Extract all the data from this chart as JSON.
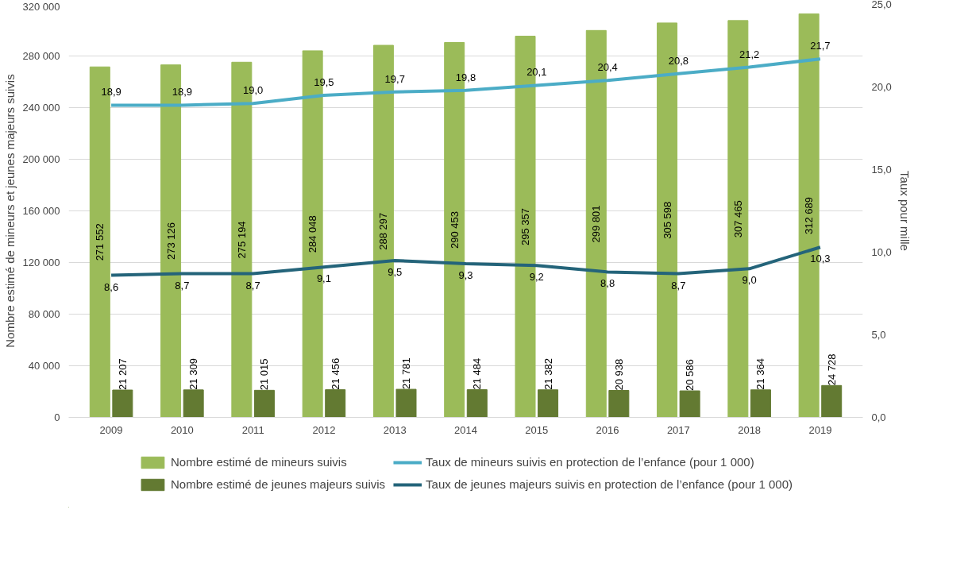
{
  "chart_data": {
    "type": "bar",
    "ylabel": "Nombre estimé de mineurs et jeunes majeurs suivis",
    "y2label": "Taux pour mille",
    "categories": [
      "2009",
      "2010",
      "2011",
      "2012",
      "2013",
      "2014",
      "2015",
      "2016",
      "2017",
      "2018",
      "2019"
    ],
    "series": [
      {
        "name": "Nombre estimé de mineurs suivis",
        "color": "#9bbb59",
        "values": [
          271552,
          273126,
          275194,
          284048,
          288297,
          290453,
          295357,
          299801,
          305598,
          307465,
          312689
        ],
        "value_labels": [
          "271 552",
          "273 126",
          "275 194",
          "284 048",
          "288 297",
          "290 453",
          "295 357",
          "299 801",
          "305 598",
          "307 465",
          "312 689"
        ]
      },
      {
        "name": "Nombre estimé de jeunes majeurs suivis",
        "color": "#637a32",
        "values": [
          21207,
          21309,
          21015,
          21456,
          21781,
          21484,
          21382,
          20938,
          20586,
          21364,
          24728
        ],
        "value_labels": [
          "21 207",
          "21 309",
          "21 015",
          "21 456",
          "21 781",
          "21 484",
          "21 382",
          "20 938",
          "20 586",
          "21 364",
          "24 728"
        ]
      },
      {
        "name": "Taux de mineurs suivis en protection de l’enfance (pour 1 000)",
        "type": "line",
        "axis": "y2",
        "color": "#4bacc6",
        "values": [
          18.9,
          18.9,
          19.0,
          19.5,
          19.7,
          19.8,
          20.1,
          20.4,
          20.8,
          21.2,
          21.7
        ],
        "value_labels": [
          "18,9",
          "18,9",
          "19,0",
          "19,5",
          "19,7",
          "19,8",
          "20,1",
          "20,4",
          "20,8",
          "21,2",
          "21,7"
        ]
      },
      {
        "name": "Taux de jeunes majeurs suivis en protection de l’enfance (pour 1 000)",
        "type": "line",
        "axis": "y2",
        "color": "#24647a",
        "values": [
          8.6,
          8.7,
          8.7,
          9.1,
          9.5,
          9.3,
          9.2,
          8.8,
          8.7,
          9.0,
          10.3
        ],
        "value_labels": [
          "8,6",
          "8,7",
          "8,7",
          "9,1",
          "9,5",
          "9,3",
          "9,2",
          "8,8",
          "8,7",
          "9,0",
          "10,3"
        ]
      }
    ],
    "ylim": [
      0,
      320000
    ],
    "yticks": [
      {
        "value": 0,
        "label": "0"
      },
      {
        "value": 40000,
        "label": "40 000"
      },
      {
        "value": 80000,
        "label": "80 000"
      },
      {
        "value": 120000,
        "label": "120 000"
      },
      {
        "value": 160000,
        "label": "160 000"
      },
      {
        "value": 200000,
        "label": "200 000"
      },
      {
        "value": 240000,
        "label": "240 000"
      },
      {
        "value": 280000,
        "label": "280 000"
      },
      {
        "value": 320000,
        "label": "320 000"
      }
    ],
    "y2lim": [
      0,
      25
    ],
    "y2ticks": [
      {
        "value": 0,
        "label": "0,0"
      },
      {
        "value": 5,
        "label": "5,0"
      },
      {
        "value": 10,
        "label": "10,0"
      },
      {
        "value": 15,
        "label": "15,0"
      },
      {
        "value": 20,
        "label": "20,0"
      },
      {
        "value": 25,
        "label": "25,0"
      }
    ],
    "grid": "y",
    "legend": "bottom"
  }
}
